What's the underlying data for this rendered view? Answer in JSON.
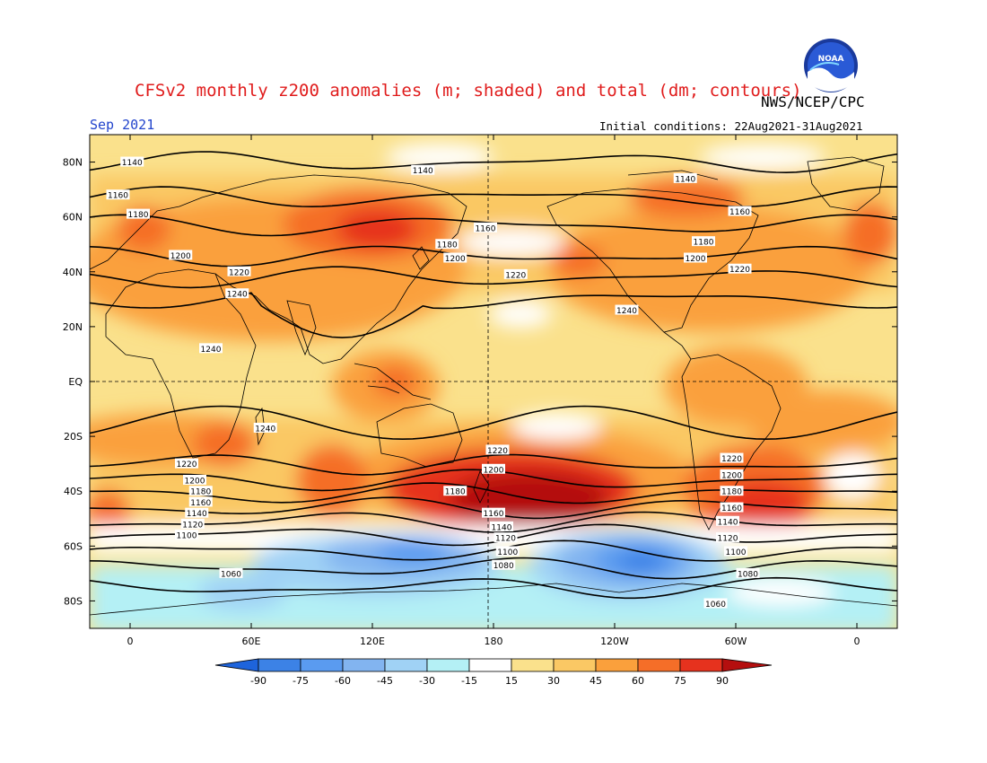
{
  "title": "CFSv2 monthly z200 anomalies (m; shaded) and total (dm; contours)",
  "org": "NWS/NCEP/CPC",
  "month": "Sep 2021",
  "initial_conditions": "Initial conditions: 22Aug2021-31Aug2021",
  "logo_text": "NOAA",
  "colors": {
    "neg90": "#1e64dc",
    "neg75": "#3c82e6",
    "neg60": "#5a9bf0",
    "neg45": "#82b4f0",
    "neg30": "#a0d2f5",
    "neg15": "#b4f0f5",
    "neutral": "#ffffff",
    "pos15": "#fae18c",
    "pos30": "#fac864",
    "pos45": "#faa03c",
    "pos60": "#f56e28",
    "pos75": "#e6321e",
    "pos90": "#b40f0f",
    "contour": "#000000",
    "coast": "#000000"
  },
  "colorbar": {
    "labels": [
      "-90",
      "-75",
      "-60",
      "-45",
      "-30",
      "-15",
      "15",
      "30",
      "45",
      "60",
      "75",
      "90"
    ]
  },
  "axes": {
    "lat_labels": [
      "80N",
      "60N",
      "40N",
      "20N",
      "EQ",
      "20S",
      "40S",
      "60S",
      "80S"
    ],
    "lon_labels": [
      "0",
      "60E",
      "120E",
      "180",
      "120W",
      "60W",
      "0"
    ]
  },
  "contours": [
    {
      "value": "1140",
      "lat": 80
    },
    {
      "value": "1160",
      "lat": 67
    },
    {
      "value": "1180",
      "lat": 57
    },
    {
      "value": "1200",
      "lat": 46
    },
    {
      "value": "1220",
      "lat": 38
    },
    {
      "value": "1240",
      "lat": 30
    },
    {
      "value": "1240",
      "lat": -15
    },
    {
      "value": "1220",
      "lat": -30
    },
    {
      "value": "1200",
      "lat": -36
    },
    {
      "value": "1180",
      "lat": -41
    },
    {
      "value": "1160",
      "lat": -46
    },
    {
      "value": "1140",
      "lat": -51
    },
    {
      "value": "1120",
      "lat": -56
    },
    {
      "value": "1100",
      "lat": -62
    },
    {
      "value": "1080",
      "lat": -68
    },
    {
      "value": "1060",
      "lat": -75
    }
  ],
  "contour_labels": [
    {
      "text": "1140",
      "lon": 1,
      "lat": 80
    },
    {
      "text": "1140",
      "lon": 145,
      "lat": 77
    },
    {
      "text": "1140",
      "lon": 275,
      "lat": 74
    },
    {
      "text": "1160",
      "lon": -6,
      "lat": 68
    },
    {
      "text": "1160",
      "lon": 176,
      "lat": 56
    },
    {
      "text": "1160",
      "lon": 302,
      "lat": 62
    },
    {
      "text": "1180",
      "lon": 4,
      "lat": 61
    },
    {
      "text": "1180",
      "lon": 157,
      "lat": 50
    },
    {
      "text": "1180",
      "lon": 284,
      "lat": 51
    },
    {
      "text": "1200",
      "lon": 25,
      "lat": 46
    },
    {
      "text": "1200",
      "lon": 161,
      "lat": 45
    },
    {
      "text": "1200",
      "lon": 280,
      "lat": 45
    },
    {
      "text": "1220",
      "lon": 54,
      "lat": 40
    },
    {
      "text": "1220",
      "lon": 191,
      "lat": 39
    },
    {
      "text": "1220",
      "lon": 302,
      "lat": 41
    },
    {
      "text": "1240",
      "lon": 53,
      "lat": 32
    },
    {
      "text": "1240",
      "lon": 246,
      "lat": 26
    },
    {
      "text": "1240",
      "lon": 40,
      "lat": 12
    },
    {
      "text": "1240",
      "lon": 67,
      "lat": -17
    },
    {
      "text": "1220",
      "lon": 182,
      "lat": -25
    },
    {
      "text": "1220",
      "lon": 28,
      "lat": -30
    },
    {
      "text": "1220",
      "lon": 298,
      "lat": -28
    },
    {
      "text": "1200",
      "lon": 180,
      "lat": -32
    },
    {
      "text": "1200",
      "lon": 32,
      "lat": -36
    },
    {
      "text": "1200",
      "lon": 298,
      "lat": -34
    },
    {
      "text": "1180",
      "lon": 35,
      "lat": -40
    },
    {
      "text": "1180",
      "lon": 161,
      "lat": -40
    },
    {
      "text": "1180",
      "lon": 298,
      "lat": -40
    },
    {
      "text": "1160",
      "lon": 35,
      "lat": -44
    },
    {
      "text": "1160",
      "lon": 180,
      "lat": -48
    },
    {
      "text": "1160",
      "lon": 298,
      "lat": -46
    },
    {
      "text": "1140",
      "lon": 33,
      "lat": -48
    },
    {
      "text": "1140",
      "lon": 184,
      "lat": -53
    },
    {
      "text": "1140",
      "lon": 296,
      "lat": -51
    },
    {
      "text": "1120",
      "lon": 31,
      "lat": -52
    },
    {
      "text": "1120",
      "lon": 186,
      "lat": -57
    },
    {
      "text": "1120",
      "lon": 296,
      "lat": -57
    },
    {
      "text": "1100",
      "lon": 28,
      "lat": -56
    },
    {
      "text": "1100",
      "lon": 187,
      "lat": -62
    },
    {
      "text": "1100",
      "lon": 300,
      "lat": -62
    },
    {
      "text": "1080",
      "lon": 185,
      "lat": -67
    },
    {
      "text": "1080",
      "lon": 306,
      "lat": -70
    },
    {
      "text": "1060",
      "lon": 50,
      "lat": -70
    },
    {
      "text": "1060",
      "lon": 290,
      "lat": -81
    }
  ]
}
